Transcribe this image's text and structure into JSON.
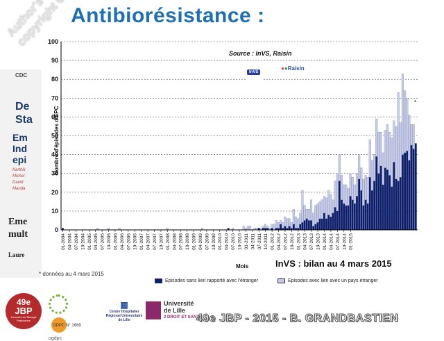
{
  "slide": {
    "title": "Antibiorésistance :",
    "watermark_line1": "Author's",
    "watermark_line2": "copyright ©",
    "source": "Source : InVS, Raisin",
    "status_note": "InVS : bilan au 4 mars 2015",
    "footnote": "* données au 4 mars 2015",
    "footer_banner": "49e JBP - 2015 - B. GRANDBASTIEN",
    "odpc": "ODPC N° 1689",
    "asterisk": "*"
  },
  "background_text": [
    "CDC",
    "Em",
    "Ind",
    "epi",
    "Eme",
    "mult",
    "Laure",
    "Karthik",
    "Michel",
    "David",
    "Manda",
    "De",
    "Sta"
  ],
  "logos": {
    "jbp_number": "49e",
    "jbp_name": "JBP",
    "jbp_sub": "Journées de Biologie Praticienne",
    "ogdpc": "ogdpc",
    "chr": "Centre Hospitalier Régional Universitaire de Lille",
    "univ_line1": "Université",
    "univ_line2": "de Lille",
    "univ_num": "2",
    "univ_sub": "DROIT ET SANTÉ",
    "invs": "InVS",
    "raisin": "Raisin"
  },
  "colors": {
    "series_dark": "#0d1e6b",
    "series_light": "#c7cce6",
    "title": "#1f6fb5"
  },
  "chart_data": {
    "type": "bar",
    "stacked": true,
    "xlabel": "Mois",
    "ylabel": "Nombre d'épisodes d'EPC",
    "ylim": [
      0,
      100
    ],
    "yticks": [
      0,
      10,
      20,
      30,
      40,
      50,
      60,
      70,
      80,
      90,
      100
    ],
    "grid": true,
    "legend_position": "bottom",
    "tick_labels": [
      "01-2004",
      "04-2004",
      "07-2004",
      "10-2004",
      "01-2005",
      "04-2005",
      "07-2005",
      "10-2005",
      "01-2006",
      "04-2006",
      "07-2006",
      "10-2006",
      "01-2007",
      "04-2007",
      "07-2007",
      "10-2007",
      "01-2008",
      "04-2008",
      "07-2008",
      "10-2008",
      "01-2009",
      "04-2009",
      "07-2009",
      "10-2009",
      "01-2010",
      "04-2010",
      "07-2010",
      "10-2010",
      "01-2011",
      "04-2011",
      "07-2011",
      "10-2011",
      "01-2012",
      "04-2012",
      "07-2012",
      "10-2012",
      "01-2013",
      "04-2013",
      "07-2013",
      "10-2013",
      "01-2014",
      "04-2014",
      "07-2014",
      "10-2014",
      "01-2015"
    ],
    "series": [
      {
        "name": "Episodes sans lien rapporté avec l'étranger",
        "values": [
          1,
          0,
          0,
          0,
          0,
          0,
          0,
          0,
          0,
          0,
          0,
          0,
          0,
          0,
          0,
          0,
          0,
          0,
          0,
          0,
          0,
          0,
          0,
          0,
          0,
          0,
          0,
          0,
          0,
          0,
          0,
          0,
          0,
          0,
          0,
          0,
          0,
          0,
          0,
          0,
          0,
          0,
          0,
          0,
          0,
          0,
          0,
          0,
          0,
          0,
          0,
          0,
          0,
          0,
          0,
          0,
          0,
          0,
          0,
          0,
          0,
          0,
          0,
          0,
          0,
          0,
          0,
          0,
          0,
          0,
          0,
          0,
          0,
          0,
          0,
          0,
          1,
          0,
          0,
          0,
          0,
          0,
          0,
          0,
          0,
          0,
          0,
          0,
          0,
          0,
          1,
          0,
          1,
          1,
          1,
          0,
          1,
          0,
          1,
          1,
          3,
          1,
          2,
          1,
          2,
          1,
          3,
          1,
          1,
          3,
          4,
          5,
          6,
          5,
          5,
          2,
          3,
          4,
          6,
          6,
          9,
          6,
          8,
          7,
          9,
          12,
          10,
          26,
          16,
          14,
          13,
          13,
          18,
          16,
          14,
          18,
          27,
          21,
          13,
          16,
          14,
          28,
          21,
          26,
          39,
          30,
          34,
          24,
          33,
          32,
          29,
          23,
          36,
          27,
          26,
          28,
          40,
          41,
          42,
          37,
          45,
          43,
          46
        ]
      },
      {
        "name": "Episodes avec lien avec un pays étranger",
        "values": [
          0,
          0,
          0,
          0,
          0,
          0,
          0,
          0,
          0,
          0,
          0,
          0,
          0,
          0,
          0,
          0,
          1,
          0,
          0,
          0,
          0,
          1,
          0,
          0,
          0,
          0,
          1,
          0,
          0,
          0,
          0,
          0,
          0,
          0,
          0,
          0,
          0,
          0,
          0,
          0,
          0,
          0,
          0,
          0,
          0,
          0,
          0,
          0,
          1,
          0,
          0,
          0,
          0,
          0,
          0,
          0,
          0,
          0,
          0,
          0,
          0,
          0,
          0,
          0,
          1,
          0,
          0,
          0,
          0,
          0,
          0,
          0,
          0,
          0,
          0,
          0,
          0,
          0,
          1,
          0,
          0,
          0,
          0,
          2,
          1,
          2,
          2,
          0,
          1,
          1,
          0,
          1,
          1,
          2,
          1,
          1,
          2,
          3,
          4,
          3,
          2,
          3,
          5,
          5,
          4,
          3,
          8,
          6,
          5,
          6,
          17,
          8,
          5,
          6,
          11,
          7,
          10,
          10,
          9,
          10,
          9,
          11,
          13,
          12,
          7,
          14,
          20,
          14,
          13,
          10,
          11,
          9,
          12,
          12,
          10,
          12,
          13,
          12,
          14,
          13,
          14,
          20,
          16,
          14,
          20,
          22,
          18,
          17,
          20,
          24,
          23,
          26,
          22,
          28,
          47,
          29,
          43,
          33,
          28,
          24,
          11,
          13
        ]
      }
    ]
  }
}
